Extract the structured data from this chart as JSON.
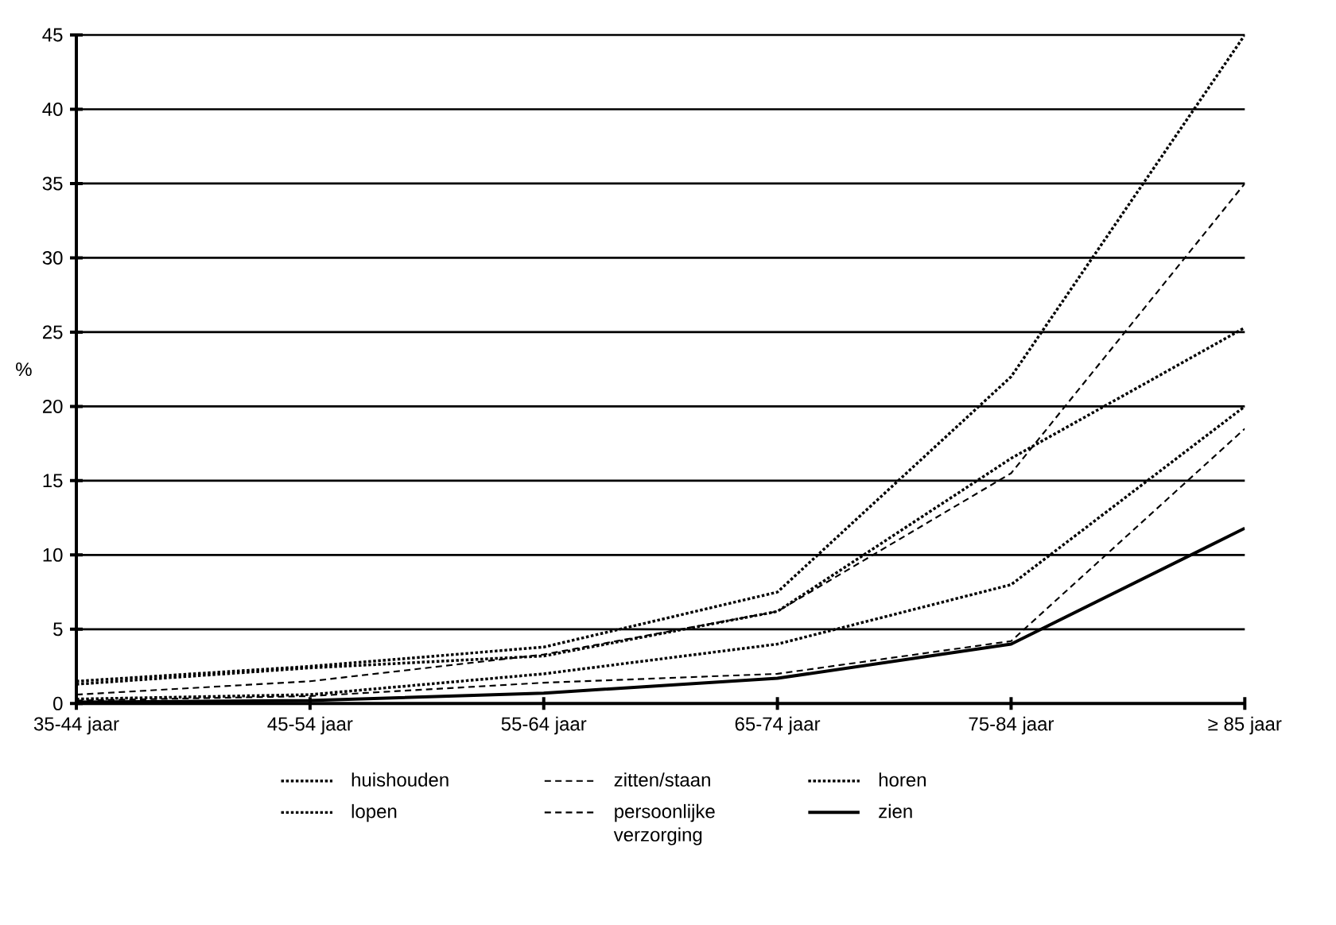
{
  "chart_data": {
    "type": "line",
    "ylabel": "%",
    "categories": [
      "35-44 jaar",
      "45-54 jaar",
      "55-64 jaar",
      "65-74 jaar",
      "75-84 jaar",
      "≥ 85 jaar"
    ],
    "series": [
      {
        "name": "huishouden",
        "color": "#000000",
        "line_style": "dotted",
        "values": [
          1.5,
          2.5,
          3.8,
          7.5,
          22,
          45
        ]
      },
      {
        "name": "zitten/staan",
        "color": "#000000",
        "line_style": "dashed",
        "values": [
          0.6,
          1.5,
          3.3,
          6.2,
          15.5,
          35
        ]
      },
      {
        "name": "horen",
        "color": "#000000",
        "line_style": "dotted",
        "values": [
          1.3,
          2.4,
          3.2,
          6.2,
          16.5,
          25.3
        ]
      },
      {
        "name": "lopen",
        "color": "#000000",
        "line_style": "dotted",
        "values": [
          0.3,
          0.6,
          2,
          4,
          8,
          20
        ]
      },
      {
        "name": "persoonlijke verzorging",
        "color": "#000000",
        "line_style": "dashed",
        "values": [
          0.2,
          0.5,
          1.4,
          2,
          4.2,
          18.5
        ]
      },
      {
        "name": "zien",
        "color": "#000000",
        "line_style": "solid",
        "values": [
          0.1,
          0.2,
          0.7,
          1.7,
          4,
          11.8
        ]
      }
    ],
    "ylim": [
      0,
      45
    ],
    "yticks": [
      0,
      5,
      10,
      15,
      20,
      25,
      30,
      35,
      40,
      45
    ],
    "grid": "y",
    "legend": "bottom"
  }
}
